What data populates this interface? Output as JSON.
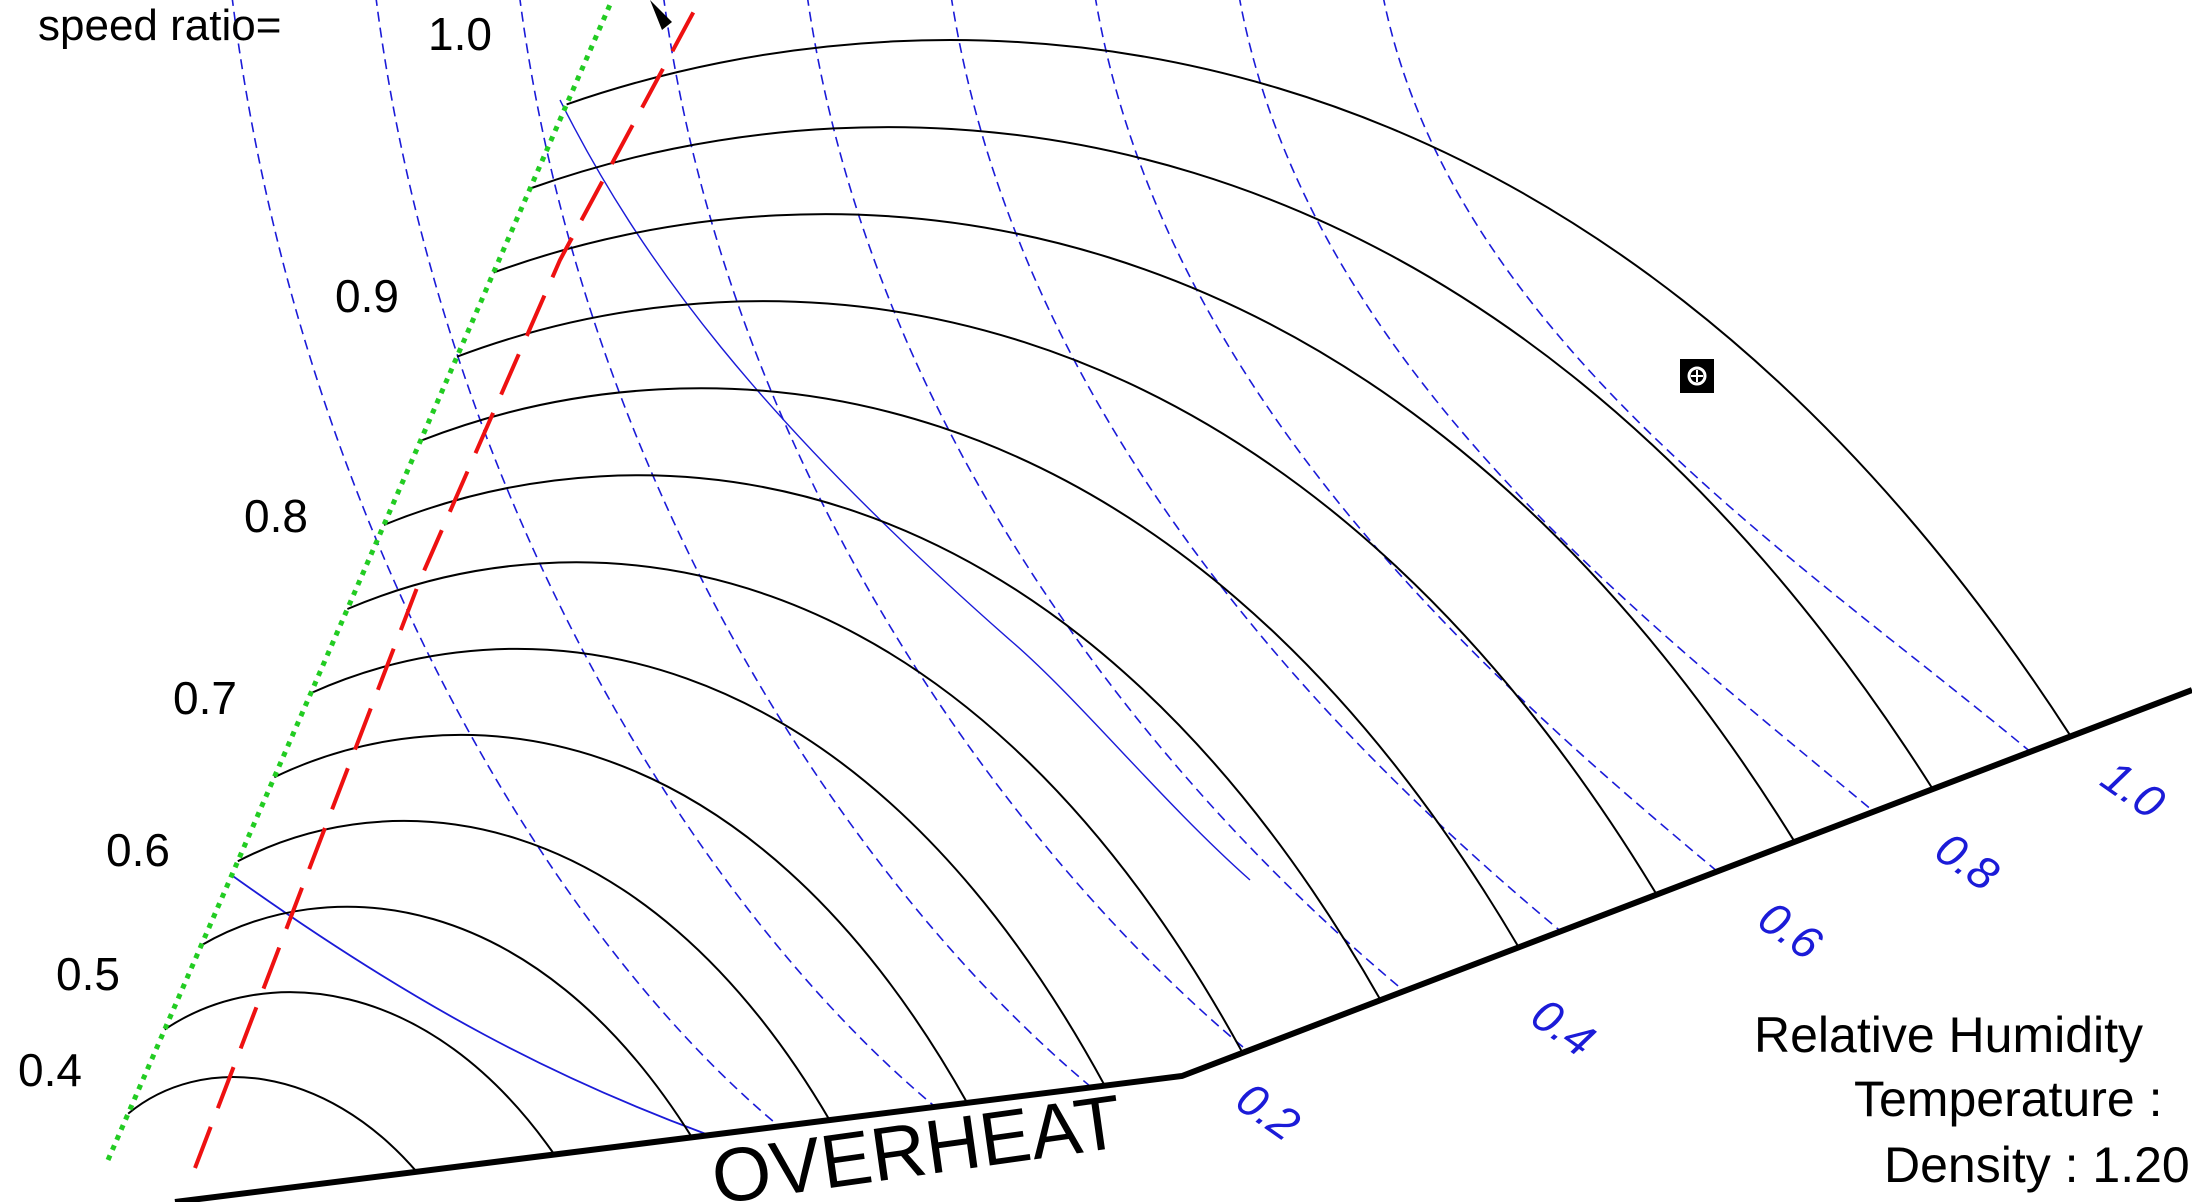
{
  "chart_data": {
    "type": "line",
    "header_label": "speed ratio=",
    "speed_ratio_ticks": [
      "1.0",
      "0.9",
      "0.8",
      "0.7",
      "0.6",
      "0.5",
      "0.4"
    ],
    "humidity_ticks": [
      "1.0",
      "0.8",
      "0.6",
      "0.4",
      "0.2"
    ],
    "region_label": "OVERHEAT",
    "info_lines": [
      "Relative Humidity",
      "Temperature :",
      "Density : 1.20"
    ],
    "series": [
      {
        "role": "speed_ratio_curves",
        "values": [
          1.0,
          0.95,
          0.9,
          0.85,
          0.8,
          0.75,
          0.7,
          0.65,
          0.6,
          0.55,
          0.5,
          0.45,
          0.4
        ]
      },
      {
        "role": "humidity_curves",
        "values": [
          0.2,
          0.3,
          0.4,
          0.5,
          0.6,
          0.7,
          0.8,
          0.9,
          1.0
        ]
      }
    ],
    "colors": {
      "speed_curves": "#000000",
      "humidity_curves": "#1b1bd8",
      "surge_line": "#ee1111",
      "axis_line": "#22cc22",
      "boundary": "#000000"
    }
  }
}
